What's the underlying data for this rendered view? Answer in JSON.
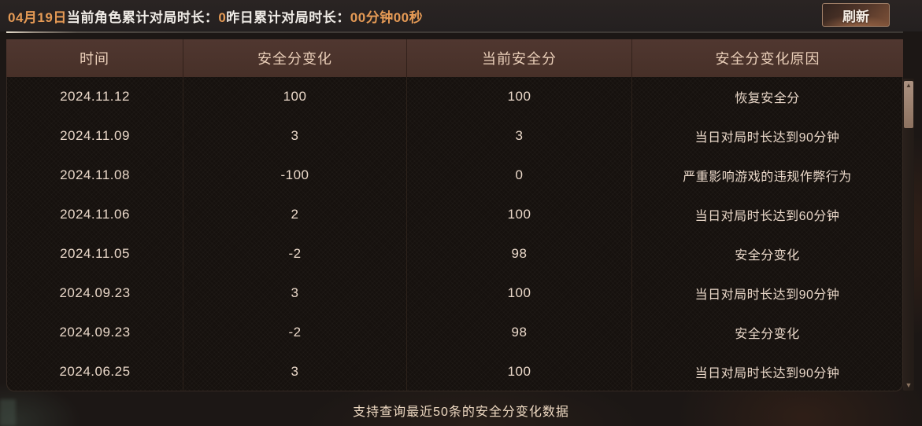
{
  "topbar": {
    "date_label": "04月19日",
    "today_label": "当前角色累计对局时长：",
    "today_value": "0",
    "yesterday_label": "昨日累计对局时长：",
    "yesterday_value": "00分钟00秒",
    "refresh_label": "刷新"
  },
  "table": {
    "headers": [
      "时间",
      "安全分变化",
      "当前安全分",
      "安全分变化原因"
    ],
    "rows": [
      {
        "date": "2024.11.12",
        "change": "100",
        "score": "100",
        "reason": "恢复安全分"
      },
      {
        "date": "2024.11.09",
        "change": "3",
        "score": "3",
        "reason": "当日对局时长达到90分钟"
      },
      {
        "date": "2024.11.08",
        "change": "-100",
        "score": "0",
        "reason": "严重影响游戏的违规作弊行为"
      },
      {
        "date": "2024.11.06",
        "change": "2",
        "score": "100",
        "reason": "当日对局时长达到60分钟"
      },
      {
        "date": "2024.11.05",
        "change": "-2",
        "score": "98",
        "reason": "安全分变化"
      },
      {
        "date": "2024.09.23",
        "change": "3",
        "score": "100",
        "reason": "当日对局时长达到90分钟"
      },
      {
        "date": "2024.09.23",
        "change": "-2",
        "score": "98",
        "reason": "安全分变化"
      },
      {
        "date": "2024.06.25",
        "change": "3",
        "score": "100",
        "reason": "当日对局时长达到90分钟"
      }
    ]
  },
  "scrollbar": {
    "up_icon": "▲",
    "down_icon": "▼"
  },
  "footer": {
    "note": "支持查询最近50条的安全分变化数据"
  },
  "colors": {
    "accent_orange": "#e59a55",
    "header_bg": "#4b332b",
    "header_text": "#eacfb9",
    "cell_text": "#ead8c9",
    "body_bg": "#16110e",
    "button_bronze": "#7d5138"
  }
}
